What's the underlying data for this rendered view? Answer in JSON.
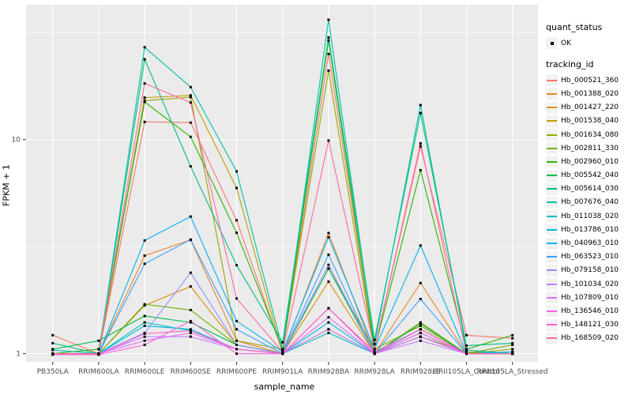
{
  "legend": {
    "quant_status_title": "quant_status",
    "ok_label": "OK",
    "tracking_id_title": "tracking_id"
  },
  "chart_data": {
    "type": "line",
    "title": "",
    "xlabel": "sample_name",
    "ylabel": "FPKM + 1",
    "yscale": "log10",
    "ylim": [
      0.92,
      42.7
    ],
    "grid": true,
    "legend_position": "right",
    "point_shape": "small-black-square",
    "quant_status": "OK",
    "panel_color": "#EBEBEB",
    "gridline_color": "#FFFFFF",
    "tick_label_color": "#4D4D4D",
    "y_ticks": [
      {
        "label": "1",
        "value": 1
      },
      {
        "label": "10",
        "value": 10
      }
    ],
    "y_minor_gridlines": [
      3.162,
      31.62
    ],
    "x_categories": [
      "PB350LA",
      "RRIM600LA",
      "RRIM600LE",
      "RRIM600SE",
      "RRIM600PE",
      "RRIM901LA",
      "RRIM928BA",
      "RRIM928LA",
      "RRIM928LE",
      "RRII105LA_Control",
      "RRII105LA_Stressed"
    ],
    "series": [
      {
        "name": "Hb_000521_360",
        "color": "#F8766D",
        "values": [
          1.22,
          1.0,
          12.1,
          12.0,
          4.2,
          1.02,
          25.1,
          1.05,
          9.3,
          1.22,
          1.18
        ]
      },
      {
        "name": "Hb_001388_020",
        "color": "#E88526",
        "values": [
          1.0,
          1.0,
          2.87,
          3.4,
          1.15,
          1.0,
          3.66,
          1.0,
          2.14,
          1.0,
          1.0
        ]
      },
      {
        "name": "Hb_001427_220",
        "color": "#D89000",
        "values": [
          1.0,
          1.0,
          1.68,
          2.06,
          1.1,
          1.0,
          2.17,
          1.0,
          1.3,
          1.0,
          1.0
        ]
      },
      {
        "name": "Hb_001538_040",
        "color": "#BE9C00",
        "values": [
          1.0,
          1.0,
          15.7,
          16.1,
          5.94,
          1.0,
          1.3,
          1.0,
          1.2,
          1.02,
          1.0
        ]
      },
      {
        "name": "Hb_001634_080",
        "color": "#9CA700",
        "values": [
          1.0,
          1.0,
          15.2,
          15.8,
          1.15,
          1.05,
          21.0,
          1.0,
          1.4,
          1.0,
          1.05
        ]
      },
      {
        "name": "Hb_002811_330",
        "color": "#6FB000",
        "values": [
          1.0,
          1.0,
          1.7,
          1.6,
          1.1,
          1.0,
          2.5,
          1.05,
          1.35,
          1.0,
          1.1
        ]
      },
      {
        "name": "Hb_002960_010",
        "color": "#2CB600",
        "values": [
          1.0,
          1.05,
          15.0,
          10.3,
          3.67,
          1.05,
          29.0,
          1.05,
          7.2,
          1.05,
          1.22
        ]
      },
      {
        "name": "Hb_005542_040",
        "color": "#00BB4B",
        "values": [
          1.05,
          1.15,
          1.5,
          1.4,
          1.1,
          1.0,
          2.5,
          1.0,
          1.38,
          1.0,
          1.02
        ]
      },
      {
        "name": "Hb_005614_030",
        "color": "#00BF7D",
        "values": [
          1.12,
          1.0,
          23.7,
          7.5,
          2.59,
          1.13,
          30.0,
          1.16,
          13.3,
          1.09,
          1.12
        ]
      },
      {
        "name": "Hb_007676_040",
        "color": "#00C1A7",
        "values": [
          1.04,
          1.0,
          27.0,
          17.6,
          7.1,
          1.05,
          36.3,
          1.11,
          14.5,
          1.04,
          1.0
        ]
      },
      {
        "name": "Hb_011038_020",
        "color": "#00BFC4",
        "values": [
          1.0,
          1.0,
          1.4,
          1.28,
          1.05,
          1.0,
          1.25,
          1.0,
          1.2,
          1.0,
          1.0
        ]
      },
      {
        "name": "Hb_013786_010",
        "color": "#00BADE",
        "values": [
          1.0,
          1.0,
          1.35,
          1.3,
          1.05,
          1.0,
          1.4,
          1.0,
          1.25,
          1.0,
          1.0
        ]
      },
      {
        "name": "Hb_040963_010",
        "color": "#00B2F3",
        "values": [
          1.0,
          1.0,
          3.38,
          4.37,
          1.42,
          1.02,
          3.5,
          1.05,
          3.2,
          1.0,
          1.02
        ]
      },
      {
        "name": "Hb_063523_010",
        "color": "#3DA1FF",
        "values": [
          1.0,
          1.0,
          2.63,
          3.41,
          1.3,
          1.0,
          2.9,
          1.0,
          1.8,
          1.0,
          1.0
        ]
      },
      {
        "name": "Hb_079158_010",
        "color": "#9590FF",
        "values": [
          1.0,
          1.0,
          1.25,
          2.39,
          1.1,
          1.0,
          2.6,
          1.0,
          1.3,
          1.0,
          1.0
        ]
      },
      {
        "name": "Hb_101034_020",
        "color": "#C77CFF",
        "values": [
          1.0,
          1.0,
          1.2,
          1.2,
          1.05,
          1.0,
          1.3,
          1.0,
          1.15,
          1.0,
          1.0
        ]
      },
      {
        "name": "Hb_107809_010",
        "color": "#E26EF7",
        "values": [
          1.0,
          1.0,
          1.15,
          1.25,
          1.05,
          1.0,
          1.48,
          1.0,
          1.2,
          1.0,
          1.0
        ]
      },
      {
        "name": "Hb_136546_010",
        "color": "#F863E0",
        "values": [
          0.99,
          0.99,
          1.1,
          1.42,
          1.0,
          1.0,
          1.63,
          1.0,
          1.25,
          1.0,
          1.0
        ]
      },
      {
        "name": "Hb_148121_030",
        "color": "#FF61C7",
        "values": [
          0.99,
          0.99,
          1.24,
          1.28,
          1.05,
          1.0,
          1.63,
          1.02,
          1.3,
          1.0,
          1.0
        ]
      },
      {
        "name": "Hb_168509_020",
        "color": "#FF689F",
        "values": [
          1.0,
          1.0,
          18.3,
          14.9,
          1.81,
          1.02,
          9.9,
          1.05,
          9.6,
          1.0,
          1.0
        ]
      }
    ]
  }
}
